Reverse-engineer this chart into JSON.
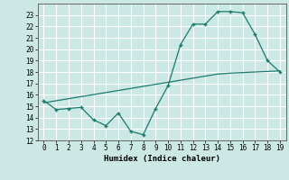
{
  "x": [
    0,
    1,
    2,
    3,
    4,
    5,
    6,
    7,
    8,
    9,
    10,
    11,
    12,
    13,
    14,
    15,
    16,
    17,
    18,
    19
  ],
  "y_main": [
    15.5,
    14.7,
    14.8,
    14.9,
    13.8,
    13.3,
    14.4,
    12.8,
    12.5,
    14.8,
    16.8,
    20.4,
    22.2,
    22.2,
    23.3,
    23.3,
    23.2,
    21.3,
    19.0,
    18.0
  ],
  "y_trend": [
    15.3,
    15.48,
    15.66,
    15.84,
    16.02,
    16.2,
    16.38,
    16.56,
    16.74,
    16.92,
    17.1,
    17.28,
    17.46,
    17.64,
    17.82,
    17.9,
    17.95,
    18.0,
    18.05,
    18.1
  ],
  "line_color": "#1a7a6e",
  "bg_color": "#cce8e4",
  "grid_color": "#ffffff",
  "xlabel": "Humidex (Indice chaleur)",
  "ylim": [
    12,
    24
  ],
  "xlim": [
    -0.5,
    19.5
  ],
  "yticks": [
    12,
    13,
    14,
    15,
    16,
    17,
    18,
    19,
    20,
    21,
    22,
    23
  ],
  "xticks": [
    0,
    1,
    2,
    3,
    4,
    5,
    6,
    7,
    8,
    9,
    10,
    11,
    12,
    13,
    14,
    15,
    16,
    17,
    18,
    19
  ]
}
